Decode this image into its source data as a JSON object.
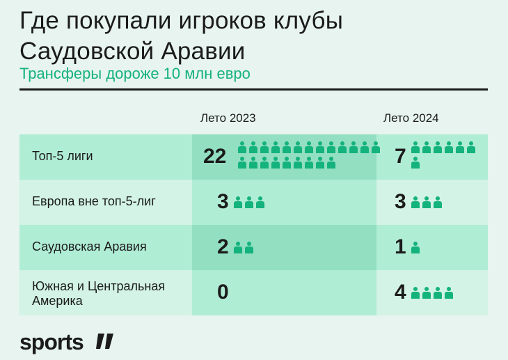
{
  "chart_data": {
    "type": "table",
    "title_line1": "Где покупали игроков клубы",
    "title_line2": "Саудовской Аравии",
    "subtitle": "Трансферы дороже 10 млн евро",
    "columns": [
      "Лето 2023",
      "Лето 2024"
    ],
    "rows": [
      {
        "label_lines": [
          "Топ-5 лиги"
        ],
        "values": [
          22,
          7
        ]
      },
      {
        "label_lines": [
          "Европа вне топ-5-лиг"
        ],
        "values": [
          3,
          3
        ]
      },
      {
        "label_lines": [
          "Саудовская Аравия"
        ],
        "values": [
          2,
          1
        ]
      },
      {
        "label_lines": [
          "Южная и Центральная",
          "Америка"
        ],
        "values": [
          0,
          4
        ]
      }
    ],
    "colors": {
      "accent": "#14b27d",
      "background": "#e7f4ef",
      "light": "#d2f3e5",
      "mid": "#b0edd5",
      "dark": "#92dfc2",
      "text": "#1b1b1b"
    }
  },
  "brand": {
    "logo": "sports"
  }
}
